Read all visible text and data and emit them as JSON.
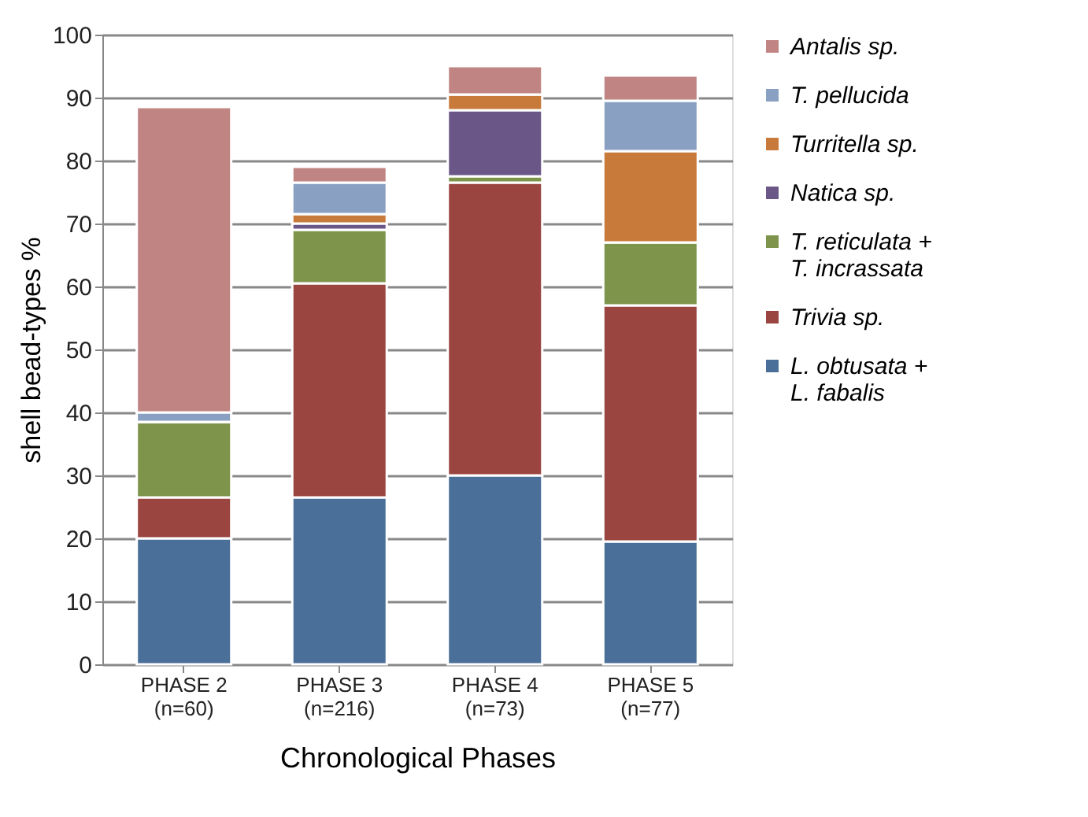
{
  "chart_data": {
    "type": "bar",
    "stacked": true,
    "xlabel": "Chronological Phases",
    "ylabel": "shell bead-types %",
    "categories": [
      "PHASE 2 (n=60)",
      "PHASE 3 (n=216)",
      "PHASE 4 (n=73)",
      "PHASE 5 (n=77)"
    ],
    "series": [
      {
        "name": "L. obtusata + L. fabalis",
        "color": "#4a6f98",
        "values": [
          20,
          26.5,
          30,
          19.5
        ]
      },
      {
        "name": "Trivia sp.",
        "color": "#9b4541",
        "values": [
          6.5,
          34,
          46.5,
          37.5
        ]
      },
      {
        "name": "T. reticulata + T. incrassata",
        "color": "#7d944a",
        "values": [
          12,
          8.5,
          1,
          10
        ]
      },
      {
        "name": "Natica sp.",
        "color": "#6a5788",
        "values": [
          0,
          1,
          10.5,
          0
        ]
      },
      {
        "name": "Turritella sp.",
        "color": "#c87a3a",
        "values": [
          0,
          1.5,
          2.5,
          14.5
        ]
      },
      {
        "name": "T. pellucida",
        "color": "#8aa0c2",
        "values": [
          1.5,
          5,
          0,
          8
        ]
      },
      {
        "name": "Antalis sp.",
        "color": "#c08583",
        "values": [
          48.5,
          2.5,
          4.5,
          4
        ]
      }
    ],
    "ylim": [
      0,
      100
    ],
    "yticks": [
      0,
      10,
      20,
      30,
      40,
      50,
      60,
      70,
      80,
      90,
      100
    ],
    "grid": "y",
    "legend": "right"
  }
}
